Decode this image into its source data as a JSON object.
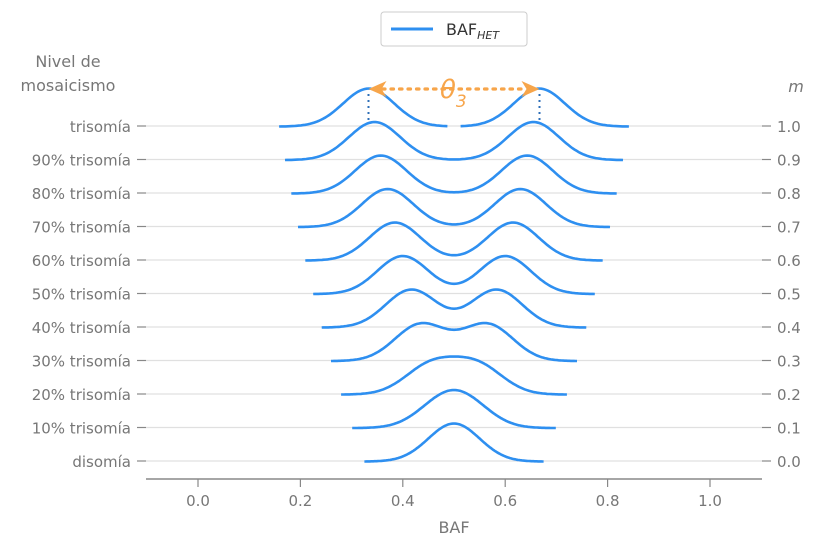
{
  "chart_data": {
    "type": "line",
    "legend": {
      "label_main": "BAF",
      "label_sub": "HET",
      "placement": "top-center"
    },
    "ylabel_left": [
      "Nivel de",
      "mosaicismo"
    ],
    "ylabel_right": "m",
    "xlabel": "BAF",
    "xlim": [
      -0.1,
      1.1
    ],
    "xticks": [
      "0.0",
      "0.2",
      "0.4",
      "0.6",
      "0.8",
      "1.0"
    ],
    "xtick_values": [
      0.0,
      0.2,
      0.4,
      0.6,
      0.8,
      1.0
    ],
    "grid": "horizontal",
    "annotation": {
      "symbol": "θ",
      "subscript": "3",
      "from": 0.333,
      "to": 0.667,
      "color": "#f7a54a"
    },
    "series_color": "#2e8ff0",
    "rows": [
      {
        "label": "disomía",
        "m": 0.0,
        "m_label": "0.0"
      },
      {
        "label": "10% trisomía",
        "m": 0.1,
        "m_label": "0.1"
      },
      {
        "label": "20% trisomía",
        "m": 0.2,
        "m_label": "0.2"
      },
      {
        "label": "30% trisomía",
        "m": 0.3,
        "m_label": "0.3"
      },
      {
        "label": "40% trisomía",
        "m": 0.4,
        "m_label": "0.4"
      },
      {
        "label": "50% trisomía",
        "m": 0.5,
        "m_label": "0.5"
      },
      {
        "label": "60% trisomía",
        "m": 0.6,
        "m_label": "0.6"
      },
      {
        "label": "70% trisomía",
        "m": 0.7,
        "m_label": "0.7"
      },
      {
        "label": "80% trisomía",
        "m": 0.8,
        "m_label": "0.8"
      },
      {
        "label": "90% trisomía",
        "m": 0.9,
        "m_label": "0.9"
      },
      {
        "label": "trisomía",
        "m": 1.0,
        "m_label": "1.0"
      }
    ]
  }
}
